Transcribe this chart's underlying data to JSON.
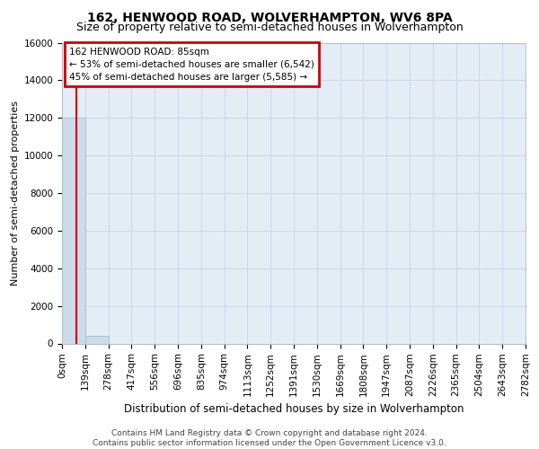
{
  "title": "162, HENWOOD ROAD, WOLVERHAMPTON, WV6 8PA",
  "subtitle": "Size of property relative to semi-detached houses in Wolverhampton",
  "xlabel": "Distribution of semi-detached houses by size in Wolverhampton",
  "ylabel": "Number of semi-detached properties",
  "footer_line1": "Contains HM Land Registry data © Crown copyright and database right 2024.",
  "footer_line2": "Contains public sector information licensed under the Open Government Licence v3.0.",
  "annotation_title": "162 HENWOOD ROAD: 85sqm",
  "annotation_line1": "← 53% of semi-detached houses are smaller (6,542)",
  "annotation_line2": "45% of semi-detached houses are larger (5,585) →",
  "property_size": 85,
  "bin_edges": [
    0,
    139,
    278,
    417,
    556,
    696,
    835,
    974,
    1113,
    1252,
    1391,
    1530,
    1669,
    1808,
    1947,
    2087,
    2226,
    2365,
    2504,
    2643,
    2782
  ],
  "bin_counts": [
    12000,
    400,
    0,
    0,
    0,
    0,
    0,
    0,
    0,
    0,
    0,
    0,
    0,
    0,
    0,
    0,
    0,
    0,
    0,
    0
  ],
  "bar_color": "#cddaea",
  "bar_edge_color": "#a8bfd4",
  "vline_color": "#cc0000",
  "annotation_box_color": "#cc0000",
  "grid_color": "#c8d4e4",
  "bg_color": "#e4ecf6",
  "ylim": [
    0,
    16000
  ],
  "yticks": [
    0,
    2000,
    4000,
    6000,
    8000,
    10000,
    12000,
    14000,
    16000
  ],
  "title_fontsize": 10,
  "subtitle_fontsize": 9,
  "ylabel_fontsize": 8,
  "xlabel_fontsize": 8.5,
  "tick_fontsize": 7.5,
  "footer_fontsize": 6.5
}
